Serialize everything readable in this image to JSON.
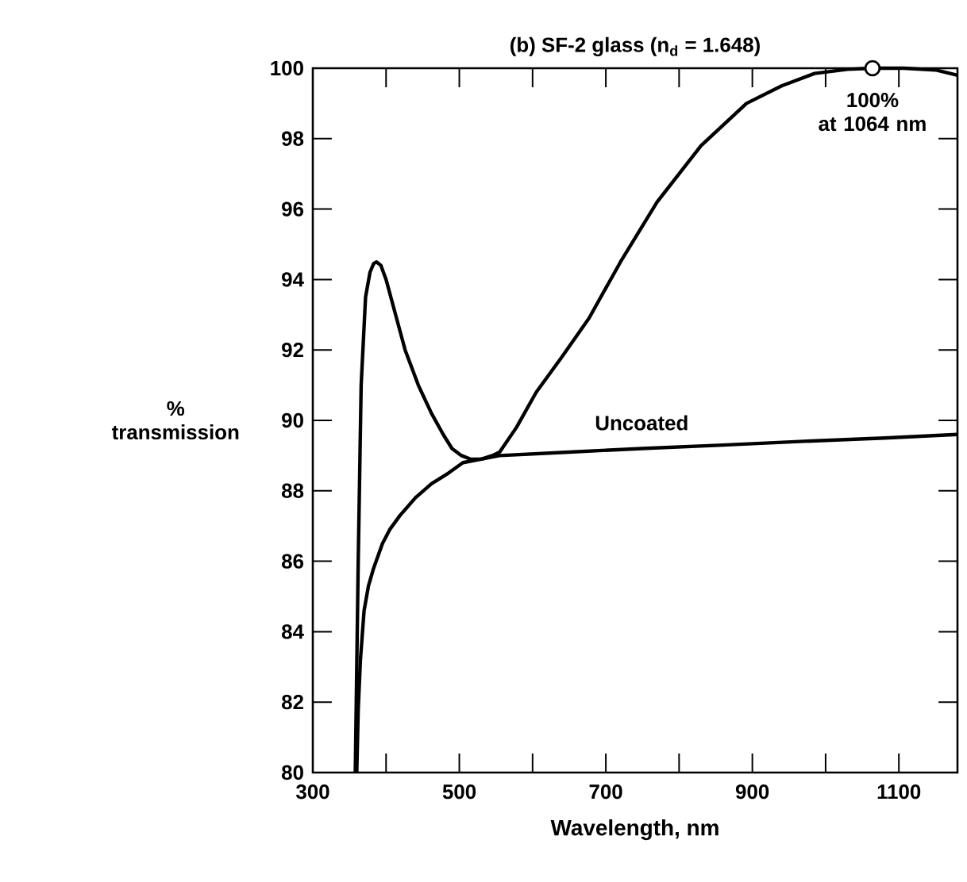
{
  "chart_data": {
    "type": "line",
    "title": "(b) SF-2 glass (n$_{d}$ = 1.648)",
    "xlabel": "Wavelength, nm",
    "ylabel": "% transmission",
    "xlim": [
      300,
      1180
    ],
    "ylim": [
      80,
      100
    ],
    "xticks": [
      300,
      {
        "value": 400,
        "label": null
      },
      500,
      {
        "value": 600,
        "label": null
      },
      700,
      {
        "value": 800,
        "label": null
      },
      900,
      {
        "value": 1000,
        "label": null
      },
      1100
    ],
    "yticks": [
      80,
      82,
      84,
      86,
      88,
      90,
      92,
      94,
      96,
      98,
      100
    ],
    "grid": false,
    "marker": "none",
    "line_style": "solid",
    "series": [
      {
        "color": "#000000",
        "x": [
          358,
          362,
          366,
          372,
          378,
          383,
          387,
          393,
          400,
          413,
          426,
          444,
          462,
          478,
          490,
          503,
          515,
          530,
          545,
          555,
          578,
          605,
          640,
          677,
          720,
          770,
          830,
          892,
          940,
          985,
          1030,
          1064,
          1107,
          1150,
          1180
        ],
        "values": [
          80,
          86,
          91,
          93.5,
          94.2,
          94.45,
          94.5,
          94.4,
          94,
          93,
          92,
          91,
          90.2,
          89.6,
          89.2,
          89,
          88.9,
          88.9,
          89,
          89.1,
          89.8,
          90.8,
          91.8,
          92.9,
          94.5,
          96.2,
          97.8,
          99,
          99.5,
          99.85,
          99.97,
          100,
          100,
          99.95,
          99.8
        ]
      },
      {
        "name": "Uncoated",
        "color": "#000000",
        "x": [
          360,
          362,
          365,
          370,
          376,
          383,
          395,
          405,
          419,
          440,
          462,
          485,
          505,
          530,
          555,
          650,
          749,
          860,
          964,
          1080,
          1180
        ],
        "values": [
          80,
          81.8,
          83.2,
          84.6,
          85.3,
          85.8,
          86.5,
          86.9,
          87.3,
          87.8,
          88.2,
          88.5,
          88.8,
          88.9,
          89,
          89.1,
          89.2,
          89.3,
          89.4,
          89.5,
          89.6
        ]
      },
      {
        "type": "scatter",
        "marker": "circle",
        "color": "#000000",
        "x": [
          1064
        ],
        "values": [
          100
        ]
      }
    ],
    "annotations": [
      {
        "text": "100%\nat 1064 nm",
        "x": 1064,
        "y": 100
      }
    ]
  }
}
